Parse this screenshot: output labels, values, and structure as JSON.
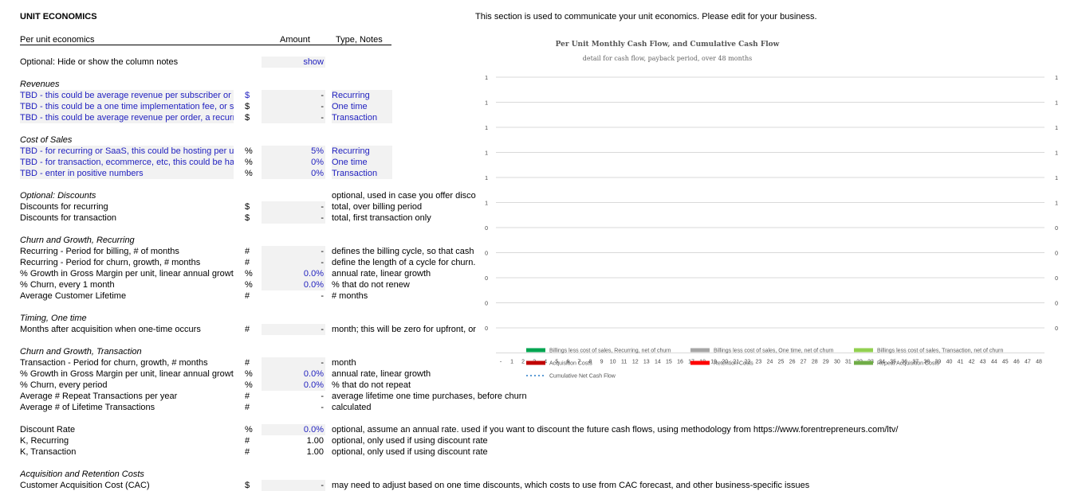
{
  "header": {
    "title": "UNIT ECONOMICS",
    "note": "This section is used to communicate your unit economics. Please edit for your business."
  },
  "columns": {
    "label": "Per unit economics",
    "amount": "Amount",
    "notes": "Type, Notes"
  },
  "optional_toggle": {
    "label": "Optional: Hide or show the column notes",
    "value": "show"
  },
  "revenues": {
    "heading": "Revenues",
    "rows": [
      {
        "label": "TBD - this could be average revenue per subscriber or",
        "unit": "$",
        "amount": "-",
        "note": "Recurring"
      },
      {
        "label": "TBD - this could be a one time implementation fee, or so",
        "unit": "$",
        "amount": "-",
        "note": "One time"
      },
      {
        "label": "TBD - this could be average revenue per order, a recurr",
        "unit": "$",
        "amount": "-",
        "note": "Transaction"
      }
    ]
  },
  "cost_of_sales": {
    "heading": "Cost of Sales",
    "rows": [
      {
        "label": "TBD - for recurring or SaaS, this could be hosting per u",
        "unit": "%",
        "amount": "5%",
        "note": "Recurring"
      },
      {
        "label": "TBD - for transaction, ecommerce, etc, this could be ha",
        "unit": "%",
        "amount": "0%",
        "note": "One time"
      },
      {
        "label": "TBD - enter in positive numbers",
        "unit": "%",
        "amount": "0%",
        "note": "Transaction"
      }
    ]
  },
  "discounts": {
    "heading": "Optional: Discounts",
    "heading_note": "optional, used in case you offer disco",
    "rows": [
      {
        "label": "Discounts for recurring",
        "unit": "$",
        "amount": "-",
        "note": "total, over billing period"
      },
      {
        "label": "Discounts for transaction",
        "unit": "$",
        "amount": "-",
        "note": "total, first transaction only"
      }
    ]
  },
  "churn_recurring": {
    "heading": "Churn and Growth, Recurring",
    "rows": [
      {
        "label": "Recurring - Period for billing, # of months",
        "unit": "#",
        "amount": "-",
        "note": "defines the billing cycle, so that cash"
      },
      {
        "label": "Recurring - Period for churn, growth, # months",
        "unit": "#",
        "amount": "-",
        "note": "define the length of a cycle for churn."
      },
      {
        "label": "% Growth in Gross Margin per unit, linear annual growt",
        "unit": "%",
        "amount": "0.0%",
        "note": "annual rate, linear growth"
      },
      {
        "label": "% Churn, every 1 month",
        "unit": "%",
        "amount": "0.0%",
        "note": "% that do not renew"
      },
      {
        "label": "Average Customer Lifetime",
        "unit": "#",
        "amount": "-",
        "note": "# months"
      }
    ]
  },
  "timing": {
    "heading": "Timing, One time",
    "rows": [
      {
        "label": "Months after acquisition when one-time occurs",
        "unit": "#",
        "amount": "-",
        "note": "month; this will be zero for upfront, or"
      }
    ]
  },
  "churn_transaction": {
    "heading": "Churn and Growth, Transaction",
    "rows": [
      {
        "label": "Transaction - Period for churn, growth, # months",
        "unit": "#",
        "amount": "-",
        "note": "month"
      },
      {
        "label": "% Growth in Gross Margin per unit, linear annual growt",
        "unit": "%",
        "amount": "0.0%",
        "note": "annual rate, linear growth"
      },
      {
        "label": "% Churn, every period",
        "unit": "%",
        "amount": "0.0%",
        "note": "% that do not repeat"
      },
      {
        "label": "Average # Repeat Transactions per year",
        "unit": "#",
        "amount": "-",
        "note": "average lifetime one time purchases, before churn"
      },
      {
        "label": "Average # of Lifetime Transactions",
        "unit": "#",
        "amount": "-",
        "note": "calculated"
      }
    ]
  },
  "discount_rate": {
    "rows": [
      {
        "label": "Discount Rate",
        "unit": "%",
        "amount": "0.0%",
        "note": "optional, assume an annual rate. used if you want to discount the future cash flows, using methodology from https://www.forentrepreneurs.com/ltv/"
      },
      {
        "label": "K, Recurring",
        "unit": "#",
        "amount": "1.00",
        "note": "optional, only used if using discount rate"
      },
      {
        "label": "K, Transaction",
        "unit": "#",
        "amount": "1.00",
        "note": "optional, only used if using discount rate"
      }
    ]
  },
  "acquisition": {
    "heading": "Acquisition and Retention Costs",
    "rows": [
      {
        "label": "Customer Acquisition Cost (CAC)",
        "unit": "$",
        "amount": "-",
        "note": "may need to adjust based on one time discounts, which costs to use from CAC forecast, and other business-specific issues"
      }
    ]
  },
  "colors": {
    "input_fill": "#f2f2f2",
    "input_text": "#1f1fbf"
  },
  "chart_data": {
    "type": "line",
    "title": "Per Unit Monthly Cash Flow, and Cumulative Cash Flow",
    "subtitle": "detail for cash flow, payback period, over 48 months",
    "y_left_ticks": [
      "1",
      "1",
      "1",
      "1",
      "1",
      "1",
      "0",
      "0",
      "0",
      "0",
      "0"
    ],
    "y_right_ticks": [
      "1",
      "1",
      "1",
      "1",
      "1",
      "1",
      "0",
      "0",
      "0",
      "0",
      "0"
    ],
    "x_categories": [
      "-",
      "1",
      "2",
      "3",
      "4",
      "5",
      "6",
      "7",
      "8",
      "9",
      "10",
      "11",
      "12",
      "13",
      "14",
      "15",
      "16",
      "17",
      "18",
      "19",
      "20",
      "21",
      "22",
      "23",
      "24",
      "25",
      "26",
      "27",
      "28",
      "29",
      "30",
      "31",
      "32",
      "33",
      "34",
      "35",
      "36",
      "37",
      "38",
      "39",
      "40",
      "41",
      "42",
      "43",
      "44",
      "45",
      "46",
      "47",
      "48"
    ],
    "grid": true,
    "legend_position": "bottom",
    "series": [
      {
        "name": "Billings less cost of sales, Recurring, net of churn",
        "color": "#00a550",
        "style": "bar",
        "values": []
      },
      {
        "name": "Billings less cost of sales, One time, net of churn",
        "color": "#a6a6a6",
        "style": "bar",
        "values": []
      },
      {
        "name": "Billings less cost of sales, Transaction, net of churn",
        "color": "#92d050",
        "style": "bar",
        "values": []
      },
      {
        "name": "Acquisition Costs",
        "color": "#c00000",
        "style": "bar",
        "values": []
      },
      {
        "name": "Retention Costs",
        "color": "#ff0000",
        "style": "bar",
        "values": []
      },
      {
        "name": "Repeat Acquisition Costs",
        "color": "#70ad47",
        "style": "bar",
        "values": []
      },
      {
        "name": "Cumulative Net Cash Flow",
        "color": "#5b9bd5",
        "style": "dotted-line",
        "values": []
      }
    ]
  }
}
